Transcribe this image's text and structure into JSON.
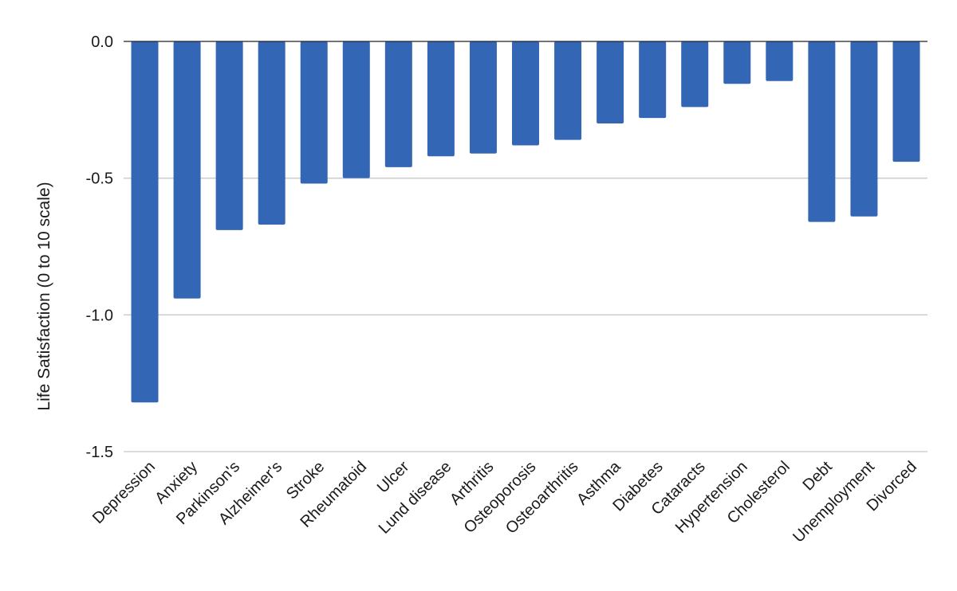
{
  "chart_data": {
    "type": "bar",
    "title": "",
    "xlabel": "",
    "ylabel": "Life Satisfaction (0 to 10 scale)",
    "ylim": [
      -1.5,
      0
    ],
    "yticks": [
      "0.0",
      "-0.5",
      "-1.0",
      "-1.5"
    ],
    "ytick_values": [
      0,
      -0.5,
      -1.0,
      -1.5
    ],
    "grid": true,
    "bar_color": "#3366b5",
    "categories": [
      "Depression",
      "Anxiety",
      "Parkinson's",
      "Alzheimer's",
      "Stroke",
      "Rheumatoid",
      "Ulcer",
      "Lund disease",
      "Arthritis",
      "Osteoporosis",
      "Osteoarthritis",
      "Asthma",
      "Diabetes",
      "Cataracts",
      "Hypertension",
      "Cholesterol",
      "Debt",
      "Unemployment",
      "Divorced"
    ],
    "values": [
      -1.32,
      -0.94,
      -0.69,
      -0.67,
      -0.52,
      -0.5,
      -0.46,
      -0.42,
      -0.41,
      -0.38,
      -0.36,
      -0.3,
      -0.28,
      -0.24,
      -0.155,
      -0.145,
      -0.66,
      -0.64,
      -0.44
    ]
  }
}
